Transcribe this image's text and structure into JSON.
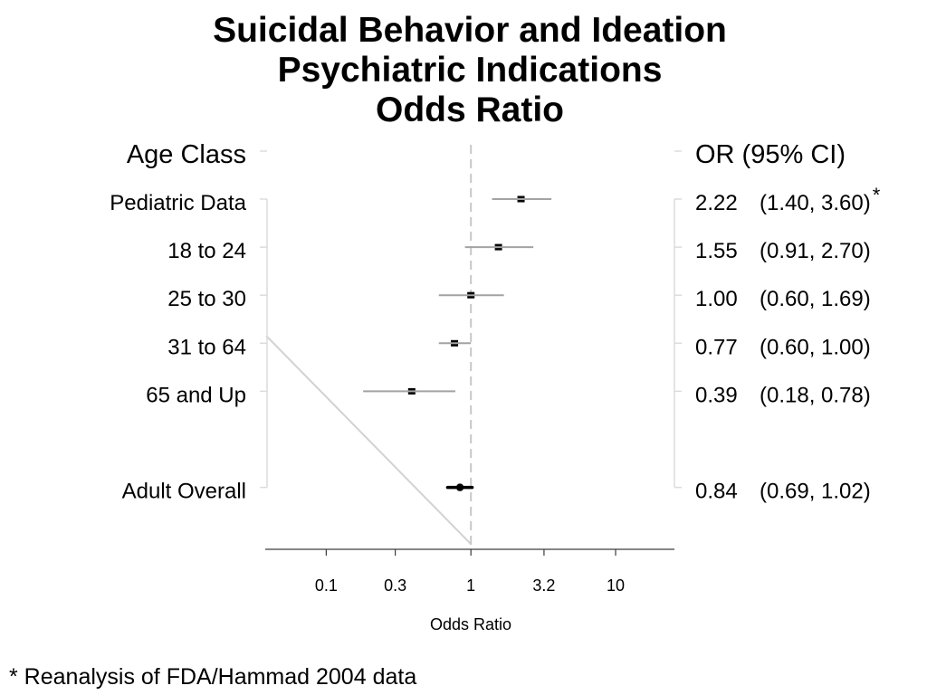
{
  "chart_data": {
    "type": "scatter",
    "title": [
      "Suicidal Behavior and Ideation",
      "Psychiatric Indications",
      "Odds Ratio"
    ],
    "xlabel": "Odds Ratio",
    "x_scale": "log",
    "xlim": [
      0.039,
      25.5
    ],
    "x_ticks": [
      0.1,
      0.3,
      1,
      3.2,
      10
    ],
    "x_tick_labels": [
      "0.1",
      "0.3",
      "1",
      "3.2",
      "10"
    ],
    "reference_line_x": 1,
    "grid": false,
    "legend": "none",
    "left_column_header": "Age Class",
    "right_column_header": "OR (95% CI)",
    "rows": [
      {
        "label": "Pediatric Data",
        "or": 2.22,
        "ci_lower": 1.4,
        "ci_upper": 3.6,
        "or_text": "2.22",
        "ci_text": "(1.40, 3.60)",
        "note": "*"
      },
      {
        "label": "18 to 24",
        "or": 1.55,
        "ci_lower": 0.91,
        "ci_upper": 2.7,
        "or_text": "1.55",
        "ci_text": "(0.91, 2.70)"
      },
      {
        "label": "25 to 30",
        "or": 1.0,
        "ci_lower": 0.6,
        "ci_upper": 1.69,
        "or_text": "1.00",
        "ci_text": "(0.60, 1.69)"
      },
      {
        "label": "31 to 64",
        "or": 0.77,
        "ci_lower": 0.6,
        "ci_upper": 1.0,
        "or_text": "0.77",
        "ci_text": "(0.60, 1.00)"
      },
      {
        "label": "65 and Up",
        "or": 0.39,
        "ci_lower": 0.18,
        "ci_upper": 0.78,
        "or_text": "0.39",
        "ci_text": "(0.18, 0.78)"
      },
      {
        "label": "Adult Overall",
        "or": 0.84,
        "ci_lower": 0.69,
        "ci_upper": 1.02,
        "or_text": "0.84",
        "ci_text": "(0.69, 1.02)",
        "summary": true
      }
    ],
    "footnote": "* Reanalysis of FDA/Hammad 2004 data"
  },
  "colors": {
    "marker": "#000000",
    "ci_line": "#a3a3a3",
    "summary_marker": "#000000",
    "reference_line": "#c8c8c8"
  }
}
